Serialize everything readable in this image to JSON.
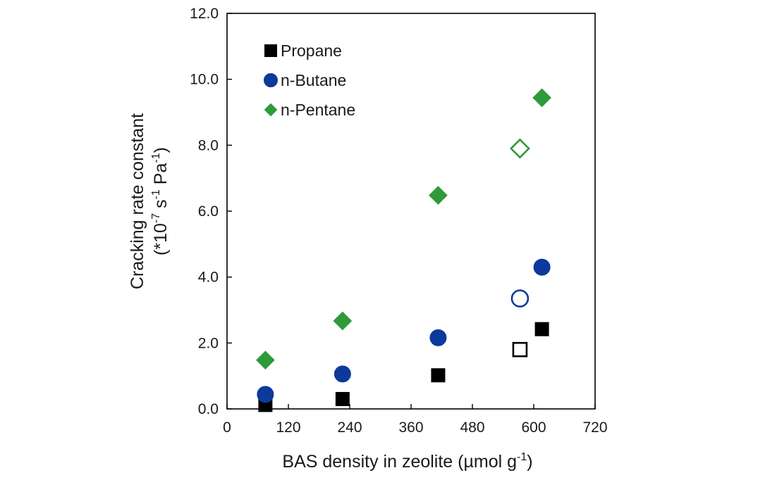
{
  "chart_data": {
    "type": "scatter",
    "xlabel": {
      "base": "BAS density in zeolite (µmol g",
      "sup": "-1",
      "end": ")"
    },
    "ylabel": {
      "line1": "Cracking rate constant",
      "line2_a": "(*10",
      "line2_sup1": "-7",
      "line2_b": " s",
      "line2_sup2": "-1",
      "line2_c": " Pa",
      "line2_sup3": "-1",
      "line2_d": ")"
    },
    "xlim": [
      0,
      720
    ],
    "ylim": [
      0,
      12
    ],
    "x_ticks": [
      0,
      120,
      240,
      360,
      480,
      600,
      720
    ],
    "x_tick_labels": [
      "0",
      "120",
      "240",
      "360",
      "480",
      "600",
      "720"
    ],
    "y_ticks": [
      0,
      2,
      4,
      6,
      8,
      10,
      12
    ],
    "y_tick_labels": [
      "0.0",
      "2.0",
      "4.0",
      "6.0",
      "8.0",
      "10.0",
      "12.0"
    ],
    "grid": false,
    "legend_position": "top-left",
    "series": [
      {
        "name": "Propane",
        "marker": "square",
        "color": "#000000",
        "points": [
          {
            "x": 75,
            "y": 0.12,
            "filled": true
          },
          {
            "x": 226,
            "y": 0.3,
            "filled": true
          },
          {
            "x": 413,
            "y": 1.02,
            "filled": true
          },
          {
            "x": 573,
            "y": 1.8,
            "filled": false
          },
          {
            "x": 616,
            "y": 2.42,
            "filled": true
          }
        ]
      },
      {
        "name": "n-Butane",
        "marker": "circle",
        "color": "#0b3a9c",
        "points": [
          {
            "x": 75,
            "y": 0.44,
            "filled": true
          },
          {
            "x": 226,
            "y": 1.06,
            "filled": true
          },
          {
            "x": 413,
            "y": 2.16,
            "filled": true
          },
          {
            "x": 573,
            "y": 3.35,
            "filled": false
          },
          {
            "x": 616,
            "y": 4.3,
            "filled": true
          }
        ]
      },
      {
        "name": "n-Pentane",
        "marker": "diamond",
        "color": "#2e9a3a",
        "points": [
          {
            "x": 75,
            "y": 1.48,
            "filled": true
          },
          {
            "x": 226,
            "y": 2.67,
            "filled": true
          },
          {
            "x": 413,
            "y": 6.48,
            "filled": true
          },
          {
            "x": 573,
            "y": 7.9,
            "filled": false
          },
          {
            "x": 616,
            "y": 9.44,
            "filled": true
          }
        ]
      }
    ]
  }
}
